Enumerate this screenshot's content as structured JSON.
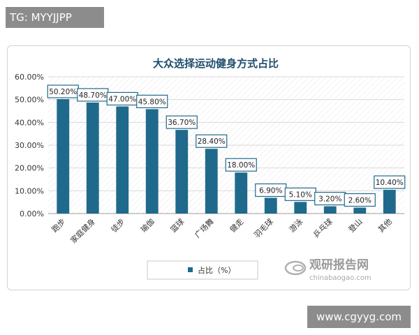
{
  "tag_text": "TG: MYYJJPP",
  "footer_text": "www.cgyyg.com",
  "watermark": {
    "brand_cn": "观研报告网",
    "brand_en": "chinabaogao.com"
  },
  "colors": {
    "bar": "#1f6a8c",
    "grid": "#d9d9d9",
    "label_border": "#1f6a8c",
    "title": "#1f4e6b",
    "plot_bg": "#ffffff"
  },
  "chart_data": {
    "type": "bar",
    "title": "大众选择运动健身方式占比",
    "categories": [
      "跑步",
      "家庭健身",
      "徒步",
      "瑜伽",
      "篮球",
      "广场舞",
      "健走",
      "羽毛球",
      "游泳",
      "乒乓球",
      "登山",
      "其他"
    ],
    "series": [
      {
        "name": "占比（%）",
        "values": [
          50.2,
          48.7,
          47.0,
          45.8,
          36.7,
          28.4,
          18.0,
          6.9,
          5.1,
          3.2,
          2.6,
          10.4
        ],
        "labels": [
          "50.20%",
          "48.70%",
          "47.00%",
          "45.80%",
          "36.70%",
          "28.40%",
          "18.00%",
          "6.90%",
          "5.10%",
          "3.20%",
          "2.60%",
          "10.40%"
        ]
      }
    ],
    "ylim": [
      0,
      60
    ],
    "yticks": [
      "0.00%",
      "10.00%",
      "20.00%",
      "30.00%",
      "40.00%",
      "50.00%",
      "60.00%"
    ],
    "grid": true,
    "legend_position": "bottom"
  }
}
